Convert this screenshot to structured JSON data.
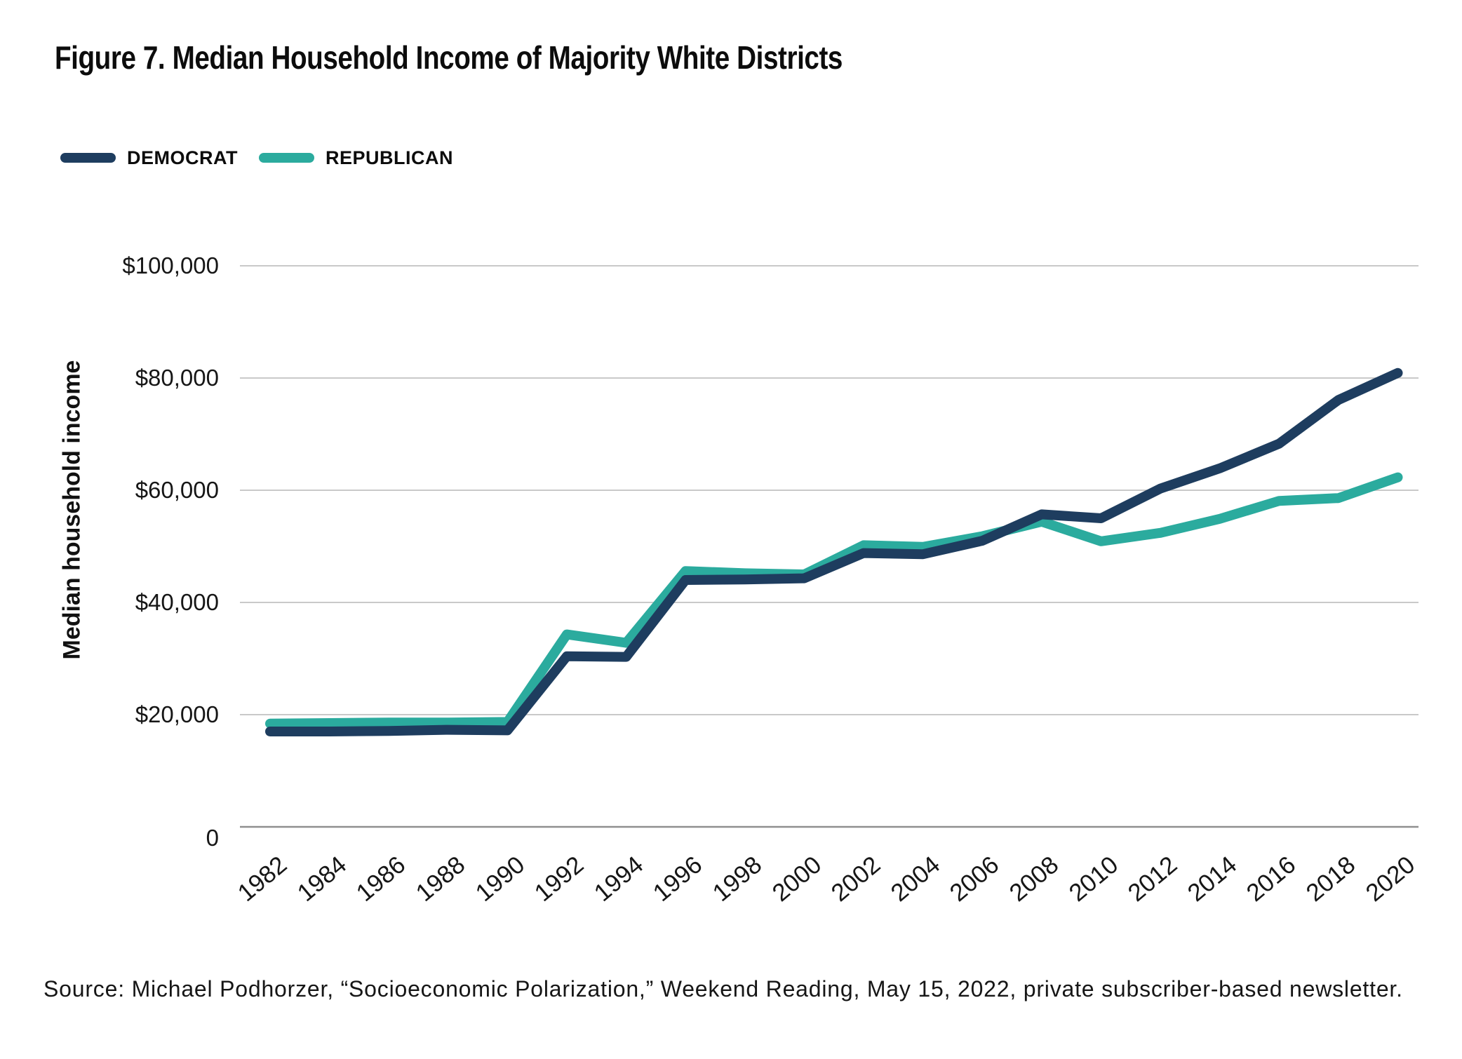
{
  "figure": {
    "title": "Figure 7. Median Household Income of Majority White Districts",
    "source": "Source: Michael Podhorzer, “Socioeconomic Polarization,” Weekend Reading, May 15, 2022, private subscriber-based newsletter."
  },
  "colors": {
    "democrat": "#1E3D5F",
    "republican": "#2BAB9E",
    "gridline": "#C9C9C9",
    "zero_axis_line": "#8F8F8F",
    "text": "#161616",
    "background": "#FFFFFF"
  },
  "chart_data": {
    "type": "line",
    "title": "Figure 7. Median Household Income of Majority White Districts",
    "xlabel": "",
    "ylabel": "Median household income",
    "ylim": [
      0,
      100000
    ],
    "grid": "horizontal",
    "legend_position": "top-left",
    "y_ticks": [
      100000,
      80000,
      60000,
      40000,
      20000,
      0
    ],
    "y_tick_labels": [
      "$100,000",
      "$80,000",
      "$60,000",
      "$40,000",
      "$20,000",
      "0"
    ],
    "categories": [
      1982,
      1984,
      1986,
      1988,
      1990,
      1992,
      1994,
      1996,
      1998,
      2000,
      2002,
      2004,
      2006,
      2008,
      2010,
      2012,
      2014,
      2016,
      2018,
      2020
    ],
    "series": [
      {
        "name": "DEMOCRAT",
        "color": "#1E3D5F",
        "values": [
          17000,
          17000,
          17100,
          17300,
          17200,
          30400,
          30300,
          44000,
          44100,
          44300,
          48800,
          48600,
          51000,
          55700,
          55000,
          60300,
          63900,
          68300,
          76100,
          80900
        ]
      },
      {
        "name": "REPUBLICAN",
        "color": "#2BAB9E",
        "values": [
          18400,
          18500,
          18600,
          18600,
          18700,
          34300,
          32800,
          45600,
          45200,
          45000,
          50200,
          49900,
          51800,
          54400,
          50900,
          52400,
          54900,
          58100,
          58600,
          62300
        ]
      }
    ]
  }
}
